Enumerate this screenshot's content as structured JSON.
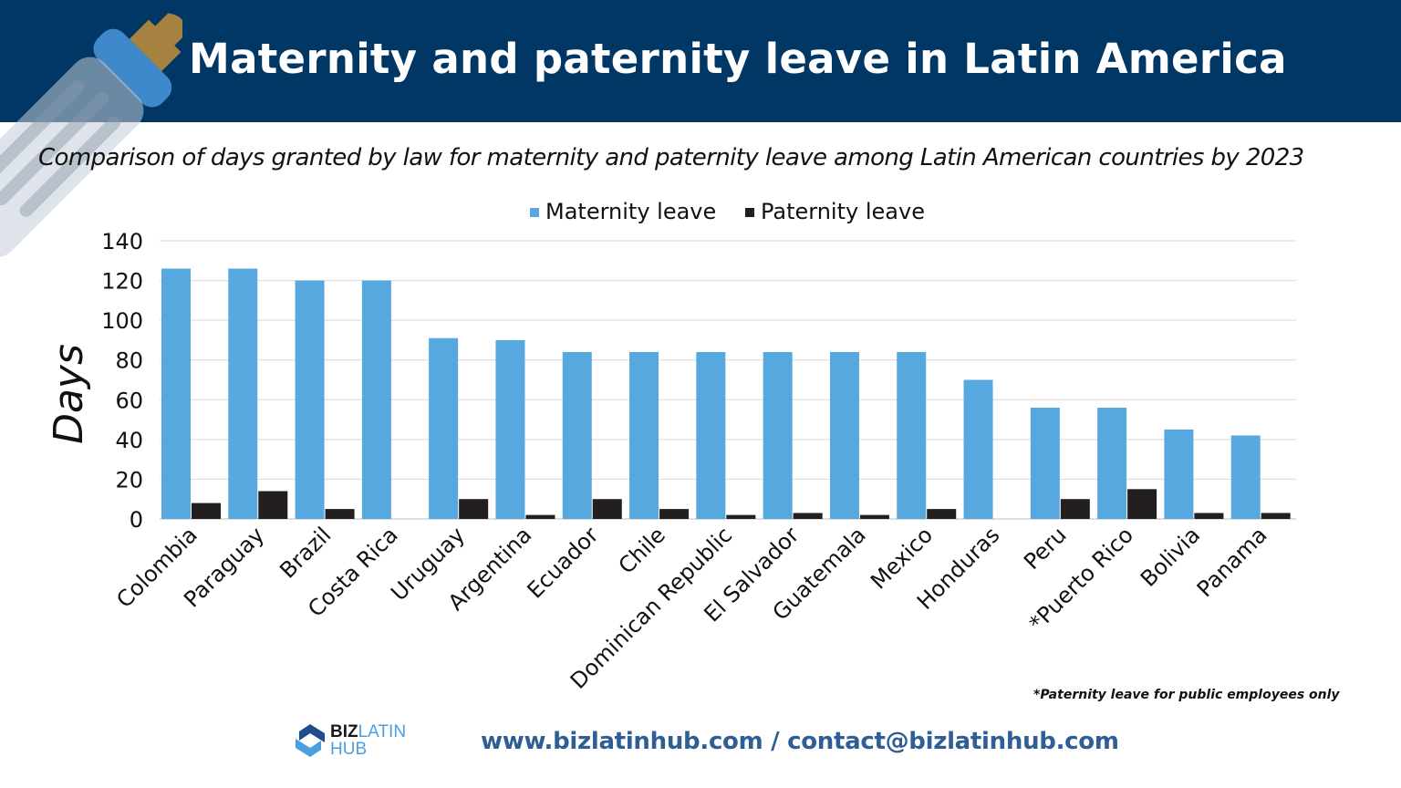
{
  "header": {
    "title": "Maternity and paternity leave in Latin America"
  },
  "subtitle": "Comparison of days granted by law for maternity and paternity leave among Latin American countries by 2023",
  "colors": {
    "header_bg": "#003764",
    "maternity": "#56a8de",
    "paternity": "#231f20"
  },
  "decoration": {
    "icon": "baby-bottle-icon"
  },
  "chart_data": {
    "type": "bar",
    "ylabel": "Days",
    "ylim": [
      0,
      140
    ],
    "yticks": [
      0,
      20,
      40,
      60,
      80,
      100,
      120,
      140
    ],
    "grid": true,
    "legend_position": "top",
    "categories": [
      "Colombia",
      "Paraguay",
      "Brazil",
      "Costa Rica",
      "Uruguay",
      "Argentina",
      "Ecuador",
      "Chile",
      "Dominican Republic",
      "El Salvador",
      "Guatemala",
      "Mexico",
      "Honduras",
      "Peru",
      "*Puerto Rico",
      "Bolivia",
      "Panama"
    ],
    "series": [
      {
        "name": "Maternity leave",
        "color": "#56a8de",
        "values": [
          126,
          126,
          120,
          120,
          91,
          90,
          84,
          84,
          84,
          84,
          84,
          84,
          70,
          56,
          56,
          45,
          42
        ]
      },
      {
        "name": "Paternity leave",
        "color": "#231f20",
        "values": [
          8,
          14,
          5,
          0,
          10,
          2,
          10,
          5,
          2,
          3,
          2,
          5,
          0,
          10,
          15,
          3,
          3
        ]
      }
    ]
  },
  "footnote": "*Paternity leave for public employees only",
  "footer": {
    "contact": "www.bizlatinhub.com / contact@bizlatinhub.com",
    "logo": {
      "biz": "BIZ",
      "latin": "LATIN",
      "hub": "HUB"
    }
  }
}
